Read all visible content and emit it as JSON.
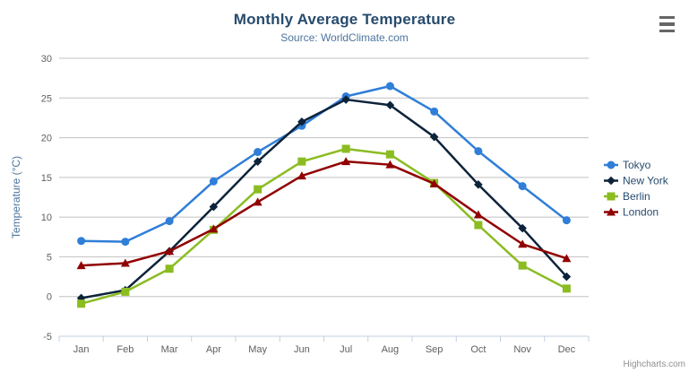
{
  "header": {
    "title": "Monthly Average Temperature",
    "subtitle": "Source: WorldClimate.com"
  },
  "icons": {
    "menu": "hamburger-menu-icon"
  },
  "credits": "Highcharts.com",
  "style_colors": {
    "title": "#274b6d",
    "subtitle": "#4d759e",
    "grid_line": "#c0c0c0",
    "axis_line": "#c0d0e0",
    "tick_label": "#606060",
    "y_axis_title": "#4d759e",
    "legend_text": "#274b6d",
    "credits_text": "#909090",
    "menu_icon": "#666666"
  },
  "chart_data": {
    "type": "line",
    "title": "Monthly Average Temperature",
    "subtitle": "Source: WorldClimate.com",
    "categories": [
      "Jan",
      "Feb",
      "Mar",
      "Apr",
      "May",
      "Jun",
      "Jul",
      "Aug",
      "Sep",
      "Oct",
      "Nov",
      "Dec"
    ],
    "series": [
      {
        "name": "Tokyo",
        "color": "#2f7ed8",
        "marker": "circle",
        "values": [
          7.0,
          6.9,
          9.5,
          14.5,
          18.2,
          21.5,
          25.2,
          26.5,
          23.3,
          18.3,
          13.9,
          9.6
        ]
      },
      {
        "name": "New York",
        "color": "#0d233a",
        "marker": "diamond",
        "values": [
          -0.2,
          0.8,
          5.7,
          11.3,
          17.0,
          22.0,
          24.8,
          24.1,
          20.1,
          14.1,
          8.6,
          2.5
        ]
      },
      {
        "name": "Berlin",
        "color": "#8bbc21",
        "marker": "square",
        "values": [
          -0.9,
          0.6,
          3.5,
          8.4,
          13.5,
          17.0,
          18.6,
          17.9,
          14.3,
          9.0,
          3.9,
          1.0
        ]
      },
      {
        "name": "London",
        "color": "#910000",
        "marker": "triangle",
        "values": [
          3.9,
          4.2,
          5.7,
          8.5,
          11.9,
          15.2,
          17.0,
          16.6,
          14.2,
          10.3,
          6.6,
          4.8
        ]
      }
    ],
    "xlabel": "",
    "ylabel": "Temperature (°C)",
    "ylim": [
      -5,
      30
    ],
    "ytick_step": 5,
    "grid": true,
    "legend_position": "right"
  }
}
